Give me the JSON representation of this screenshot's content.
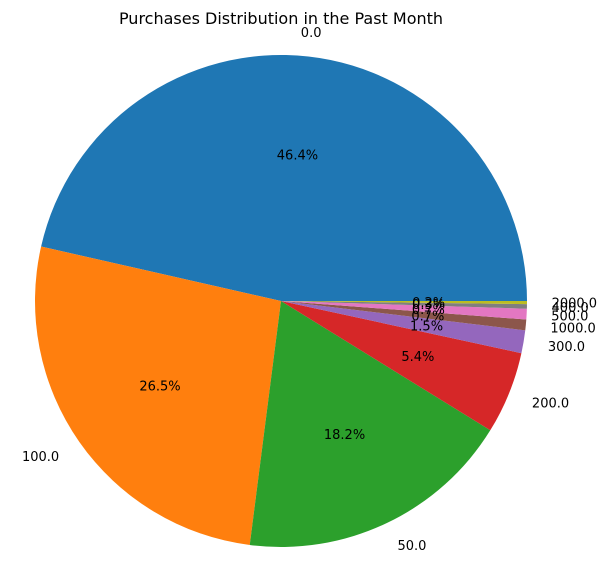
{
  "chart_data": {
    "type": "pie",
    "title": "Purchases Distribution in the Past Month",
    "categories": [
      "0.0",
      "100.0",
      "50.0",
      "200.0",
      "300.0",
      "1000.0",
      "500.0",
      "400.0",
      "2000.0"
    ],
    "values": [
      46.4,
      26.5,
      18.2,
      5.4,
      1.5,
      0.7,
      0.7,
      0.3,
      0.2
    ],
    "value_labels": [
      "46.4%",
      "26.5%",
      "18.2%",
      "5.4%",
      "1.5%",
      "0.7%",
      "0.7%",
      "0.3%",
      "0.2%"
    ],
    "colors": [
      "#1f77b4",
      "#ff7f0e",
      "#2ca02c",
      "#d62728",
      "#9467bd",
      "#8c564b",
      "#e377c2",
      "#7f7f7f",
      "#bcbd22"
    ],
    "start_angle": "0 degrees (3 o'clock)",
    "direction": "counterclockwise",
    "legend": "none"
  }
}
